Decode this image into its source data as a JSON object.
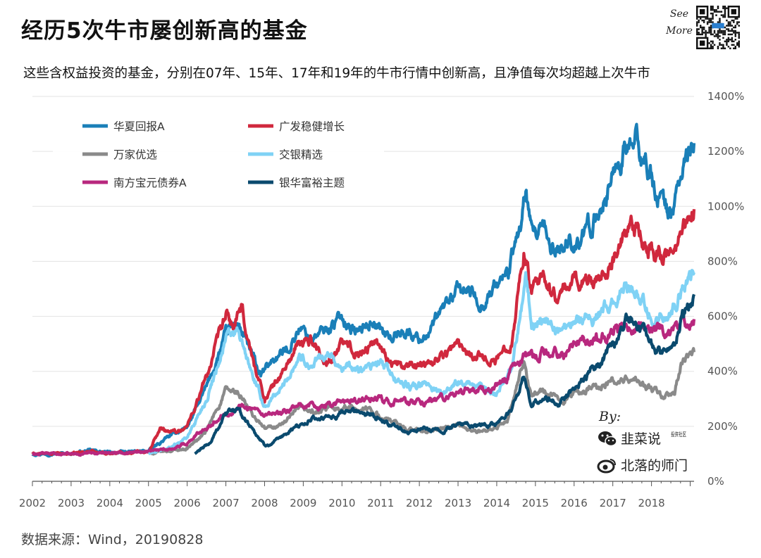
{
  "title": "经历5次牛市屡创新高的基金",
  "subtitle": "这些含权益投资的基金，分别在07年、15年、17年和19年的牛市行情中创新高，且净值每次均超越上次牛市",
  "source": "数据来源：Wind，20190828",
  "see_more": "See More",
  "credits": {
    "by": "By:",
    "wechat_icon": "wechat-icon",
    "wechat_name": "韭菜说",
    "wechat_tag": "投资社区",
    "weibo_icon": "weibo-icon",
    "weibo_name": "北落的师门"
  },
  "chart_data": {
    "type": "line",
    "x_ticks": [
      "2002",
      "2003",
      "2004",
      "2005",
      "2006",
      "2007",
      "2008",
      "2009",
      "2010",
      "2011",
      "2012",
      "2013",
      "2014",
      "2015",
      "2016",
      "2017",
      "2018"
    ],
    "y_ticks": [
      "0%",
      "200%",
      "400%",
      "600%",
      "800%",
      "1000%",
      "1200%",
      "1400%"
    ],
    "ylim": [
      0,
      1400
    ],
    "xlim": [
      2002.0,
      2019.1
    ],
    "grid": true,
    "legend_position": "top-left",
    "series": [
      {
        "name": "华夏回报A",
        "color": "#1a7fb8",
        "points": [
          [
            2002.0,
            100
          ],
          [
            2003.0,
            102
          ],
          [
            2003.5,
            112
          ],
          [
            2004.0,
            104
          ],
          [
            2005.0,
            110
          ],
          [
            2005.5,
            160
          ],
          [
            2006.0,
            200
          ],
          [
            2006.5,
            340
          ],
          [
            2007.0,
            530
          ],
          [
            2007.3,
            580
          ],
          [
            2007.6,
            480
          ],
          [
            2007.9,
            380
          ],
          [
            2008.2,
            440
          ],
          [
            2008.6,
            480
          ],
          [
            2008.9,
            560
          ],
          [
            2009.2,
            520
          ],
          [
            2009.6,
            550
          ],
          [
            2010.0,
            600
          ],
          [
            2010.4,
            540
          ],
          [
            2010.8,
            590
          ],
          [
            2011.2,
            520
          ],
          [
            2011.6,
            550
          ],
          [
            2012.0,
            520
          ],
          [
            2012.3,
            550
          ],
          [
            2012.6,
            620
          ],
          [
            2012.9,
            680
          ],
          [
            2013.2,
            700
          ],
          [
            2013.6,
            650
          ],
          [
            2013.9,
            700
          ],
          [
            2014.3,
            760
          ],
          [
            2014.6,
            920
          ],
          [
            2014.75,
            1050
          ],
          [
            2014.9,
            880
          ],
          [
            2015.2,
            900
          ],
          [
            2015.5,
            830
          ],
          [
            2015.8,
            870
          ],
          [
            2016.3,
            890
          ],
          [
            2016.7,
            1000
          ],
          [
            2017.0,
            1120
          ],
          [
            2017.3,
            1200
          ],
          [
            2017.6,
            1230
          ],
          [
            2017.9,
            1140
          ],
          [
            2018.2,
            1030
          ],
          [
            2018.5,
            970
          ],
          [
            2018.8,
            1130
          ],
          [
            2019.1,
            1230
          ]
        ]
      },
      {
        "name": "广发稳健增长",
        "color": "#d0283d",
        "points": [
          [
            2002.0,
            100
          ],
          [
            2003.0,
            100
          ],
          [
            2003.5,
            110
          ],
          [
            2004.0,
            102
          ],
          [
            2005.0,
            110
          ],
          [
            2005.3,
            190
          ],
          [
            2005.7,
            180
          ],
          [
            2006.0,
            200
          ],
          [
            2006.5,
            380
          ],
          [
            2007.0,
            600
          ],
          [
            2007.2,
            560
          ],
          [
            2007.4,
            620
          ],
          [
            2007.7,
            440
          ],
          [
            2008.0,
            300
          ],
          [
            2008.4,
            380
          ],
          [
            2008.8,
            480
          ],
          [
            2009.2,
            520
          ],
          [
            2009.6,
            430
          ],
          [
            2010.0,
            500
          ],
          [
            2010.5,
            470
          ],
          [
            2010.9,
            510
          ],
          [
            2011.3,
            430
          ],
          [
            2011.7,
            410
          ],
          [
            2012.0,
            430
          ],
          [
            2012.5,
            450
          ],
          [
            2013.0,
            500
          ],
          [
            2013.5,
            460
          ],
          [
            2014.0,
            440
          ],
          [
            2014.4,
            520
          ],
          [
            2014.7,
            850
          ],
          [
            2014.9,
            680
          ],
          [
            2015.2,
            730
          ],
          [
            2015.6,
            660
          ],
          [
            2016.0,
            740
          ],
          [
            2016.5,
            730
          ],
          [
            2017.0,
            810
          ],
          [
            2017.3,
            880
          ],
          [
            2017.6,
            910
          ],
          [
            2017.9,
            850
          ],
          [
            2018.2,
            830
          ],
          [
            2018.5,
            810
          ],
          [
            2018.8,
            900
          ],
          [
            2019.1,
            990
          ]
        ]
      },
      {
        "name": "万家优选",
        "color": "#8a8a8a",
        "points": [
          [
            2005.0,
            100
          ],
          [
            2005.5,
            110
          ],
          [
            2006.0,
            120
          ],
          [
            2006.5,
            180
          ],
          [
            2007.0,
            330
          ],
          [
            2007.3,
            320
          ],
          [
            2007.7,
            240
          ],
          [
            2008.0,
            190
          ],
          [
            2008.5,
            210
          ],
          [
            2008.9,
            260
          ],
          [
            2009.4,
            250
          ],
          [
            2009.8,
            270
          ],
          [
            2010.2,
            270
          ],
          [
            2010.7,
            260
          ],
          [
            2011.2,
            220
          ],
          [
            2011.7,
            190
          ],
          [
            2012.2,
            180
          ],
          [
            2012.6,
            190
          ],
          [
            2013.0,
            200
          ],
          [
            2013.5,
            180
          ],
          [
            2013.9,
            180
          ],
          [
            2014.3,
            230
          ],
          [
            2014.7,
            430
          ],
          [
            2014.9,
            310
          ],
          [
            2015.2,
            330
          ],
          [
            2015.6,
            290
          ],
          [
            2016.0,
            320
          ],
          [
            2016.5,
            340
          ],
          [
            2017.0,
            360
          ],
          [
            2017.5,
            370
          ],
          [
            2017.9,
            340
          ],
          [
            2018.3,
            310
          ],
          [
            2018.6,
            310
          ],
          [
            2018.75,
            420
          ],
          [
            2019.1,
            470
          ]
        ]
      },
      {
        "name": "交银精选",
        "color": "#7fd2f5",
        "points": [
          [
            2005.0,
            100
          ],
          [
            2005.5,
            120
          ],
          [
            2006.0,
            160
          ],
          [
            2006.5,
            300
          ],
          [
            2007.0,
            520
          ],
          [
            2007.3,
            540
          ],
          [
            2007.7,
            380
          ],
          [
            2008.0,
            270
          ],
          [
            2008.5,
            350
          ],
          [
            2008.9,
            460
          ],
          [
            2009.2,
            420
          ],
          [
            2009.6,
            460
          ],
          [
            2010.0,
            420
          ],
          [
            2010.5,
            400
          ],
          [
            2011.0,
            430
          ],
          [
            2011.4,
            370
          ],
          [
            2011.8,
            340
          ],
          [
            2012.2,
            350
          ],
          [
            2012.7,
            320
          ],
          [
            2013.0,
            370
          ],
          [
            2013.5,
            340
          ],
          [
            2014.0,
            320
          ],
          [
            2014.4,
            420
          ],
          [
            2014.75,
            750
          ],
          [
            2014.9,
            560
          ],
          [
            2015.2,
            600
          ],
          [
            2015.6,
            540
          ],
          [
            2016.0,
            600
          ],
          [
            2016.5,
            600
          ],
          [
            2017.0,
            640
          ],
          [
            2017.3,
            700
          ],
          [
            2017.6,
            700
          ],
          [
            2017.9,
            620
          ],
          [
            2018.2,
            600
          ],
          [
            2018.5,
            600
          ],
          [
            2018.8,
            720
          ],
          [
            2019.1,
            760
          ]
        ]
      },
      {
        "name": "南方宝元债券A",
        "color": "#b8287e",
        "points": [
          [
            2002.0,
            100
          ],
          [
            2003.0,
            100
          ],
          [
            2004.0,
            105
          ],
          [
            2005.0,
            110
          ],
          [
            2005.5,
            115
          ],
          [
            2006.0,
            140
          ],
          [
            2006.5,
            200
          ],
          [
            2007.0,
            250
          ],
          [
            2007.5,
            280
          ],
          [
            2008.0,
            230
          ],
          [
            2008.5,
            250
          ],
          [
            2009.0,
            280
          ],
          [
            2009.5,
            270
          ],
          [
            2010.0,
            290
          ],
          [
            2010.5,
            295
          ],
          [
            2011.0,
            300
          ],
          [
            2011.5,
            290
          ],
          [
            2012.0,
            285
          ],
          [
            2012.5,
            300
          ],
          [
            2013.0,
            320
          ],
          [
            2013.5,
            330
          ],
          [
            2014.0,
            350
          ],
          [
            2014.4,
            400
          ],
          [
            2014.7,
            460
          ],
          [
            2014.9,
            450
          ],
          [
            2015.3,
            470
          ],
          [
            2015.7,
            460
          ],
          [
            2016.0,
            490
          ],
          [
            2016.5,
            510
          ],
          [
            2017.0,
            540
          ],
          [
            2017.4,
            560
          ],
          [
            2017.8,
            555
          ],
          [
            2018.2,
            550
          ],
          [
            2018.6,
            560
          ],
          [
            2019.1,
            590
          ]
        ]
      },
      {
        "name": "银华富裕主题",
        "color": "#0a4a6e",
        "points": [
          [
            2006.2,
            100
          ],
          [
            2006.6,
            140
          ],
          [
            2007.0,
            250
          ],
          [
            2007.3,
            260
          ],
          [
            2007.7,
            190
          ],
          [
            2008.0,
            130
          ],
          [
            2008.4,
            150
          ],
          [
            2008.8,
            200
          ],
          [
            2009.3,
            230
          ],
          [
            2009.8,
            230
          ],
          [
            2010.3,
            260
          ],
          [
            2010.7,
            250
          ],
          [
            2011.2,
            210
          ],
          [
            2011.7,
            180
          ],
          [
            2012.2,
            190
          ],
          [
            2012.6,
            180
          ],
          [
            2013.0,
            210
          ],
          [
            2013.5,
            200
          ],
          [
            2014.0,
            210
          ],
          [
            2014.4,
            260
          ],
          [
            2014.7,
            380
          ],
          [
            2014.9,
            280
          ],
          [
            2015.2,
            310
          ],
          [
            2015.6,
            280
          ],
          [
            2016.0,
            340
          ],
          [
            2016.5,
            400
          ],
          [
            2017.0,
            500
          ],
          [
            2017.3,
            590
          ],
          [
            2017.6,
            580
          ],
          [
            2017.9,
            520
          ],
          [
            2018.2,
            470
          ],
          [
            2018.5,
            470
          ],
          [
            2018.8,
            600
          ],
          [
            2019.1,
            680
          ]
        ]
      }
    ]
  }
}
